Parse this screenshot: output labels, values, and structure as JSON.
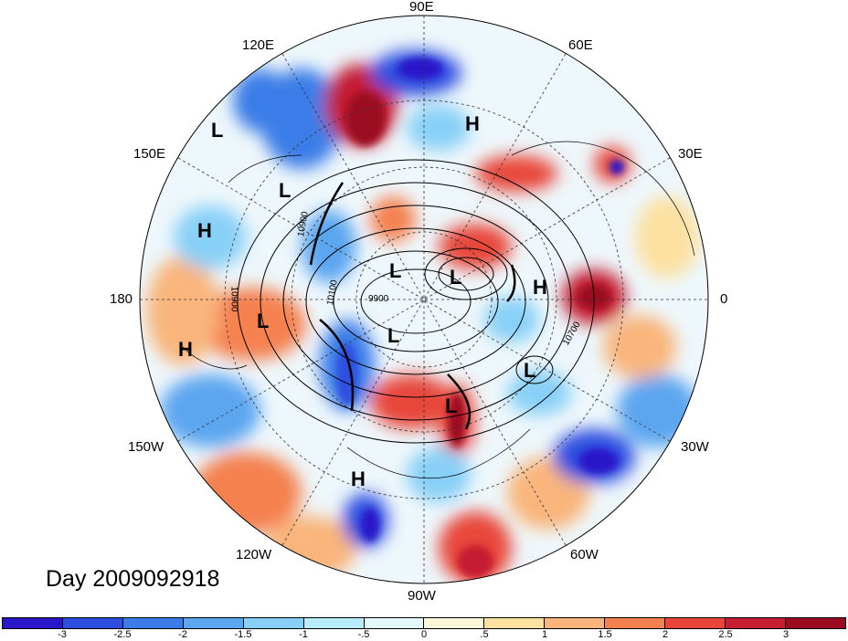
{
  "title": "Day 2009092918",
  "longitude_labels": {
    "lon_90e": "90E",
    "lon_60e": "60E",
    "lon_120e": "120E",
    "lon_30e": "30E",
    "lon_150e": "150E",
    "lon_180": "180",
    "lon_0": "0",
    "lon_150w": "150W",
    "lon_30w": "30W",
    "lon_120w": "120W",
    "lon_60w": "60W",
    "lon_90w": "90W"
  },
  "pressure_centers": [
    "L",
    "L",
    "H",
    "H",
    "L",
    "L",
    "L",
    "H",
    "L",
    "H",
    "L",
    "L",
    "H"
  ],
  "contour_labels": [
    "10900",
    "10900",
    "10100",
    "9900",
    "10700"
  ],
  "colorbar": {
    "ticks": [
      "-3",
      "-2.5",
      "-2",
      "-1.5",
      "-1",
      "-.5",
      "0",
      ".5",
      "1",
      "1.5",
      "2",
      "2.5",
      "3"
    ],
    "colors": [
      "#2a17c9",
      "#2d4fe0",
      "#3b7de8",
      "#5ba6f0",
      "#88d0f7",
      "#b8ecfb",
      "#e3f8fd",
      "#fdf6d8",
      "#fce1a0",
      "#f9b57c",
      "#f5814f",
      "#e8463a",
      "#c41e30",
      "#9c0a22"
    ]
  }
}
